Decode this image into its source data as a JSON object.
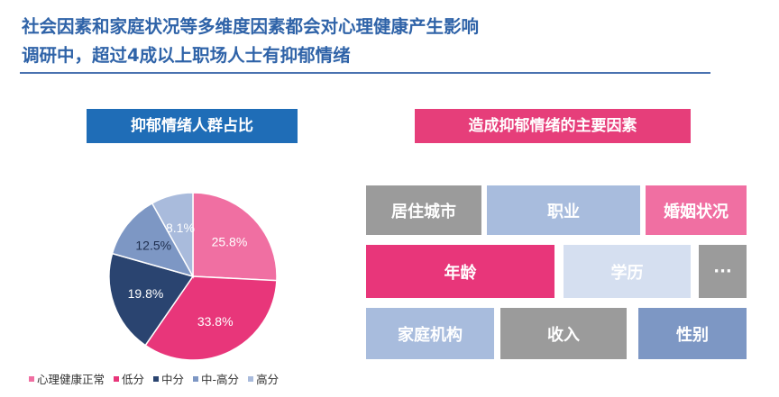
{
  "headline": {
    "line1": "社会因素和家庭状况等多维度因素都会对心理健康产生影响",
    "line2": "调研中，超过4成以上职场人士有抑郁情绪"
  },
  "left_badge": {
    "label": "抑郁情绪人群占比",
    "color": "#1f6db7"
  },
  "right_badge": {
    "label": "造成抑郁情绪的主要因素",
    "color": "#e63e7a"
  },
  "chart_data": {
    "type": "pie",
    "title": "抑郁情绪人群占比",
    "series": [
      {
        "name": "心理健康正常",
        "value": 25.8,
        "label": "25.8%",
        "color": "#f06fa2",
        "label_color": "#ffffff"
      },
      {
        "name": "低分",
        "value": 33.8,
        "label": "33.8%",
        "color": "#e8367a",
        "label_color": "#ffffff"
      },
      {
        "name": "中分",
        "value": 19.8,
        "label": "19.8%",
        "color": "#2a4470",
        "label_color": "#ffffff"
      },
      {
        "name": "中-高分",
        "value": 12.5,
        "label": "12.5%",
        "color": "#7d97c4",
        "label_color": "#1f2f4f"
      },
      {
        "name": "高分",
        "value": 8.1,
        "label": "8.1%",
        "color": "#a9bbdc",
        "label_color": "#ffffff"
      }
    ],
    "legend_position": "bottom"
  },
  "factors": [
    {
      "label": "居住城市",
      "color": "#9b9b9b"
    },
    {
      "label": "职业",
      "color": "#a8bcdd"
    },
    {
      "label": "婚姻状况",
      "color": "#f06fa2"
    },
    {
      "label": "年龄",
      "color": "#e8367a"
    },
    {
      "label": "学历",
      "color": "#d5dff0"
    },
    {
      "label": "···",
      "color": "#9b9b9b"
    },
    {
      "label": "家庭机构",
      "color": "#a8bcdd"
    },
    {
      "label": "收入",
      "color": "#9b9b9b"
    },
    {
      "label": "性别",
      "color": "#7d97c4"
    }
  ]
}
